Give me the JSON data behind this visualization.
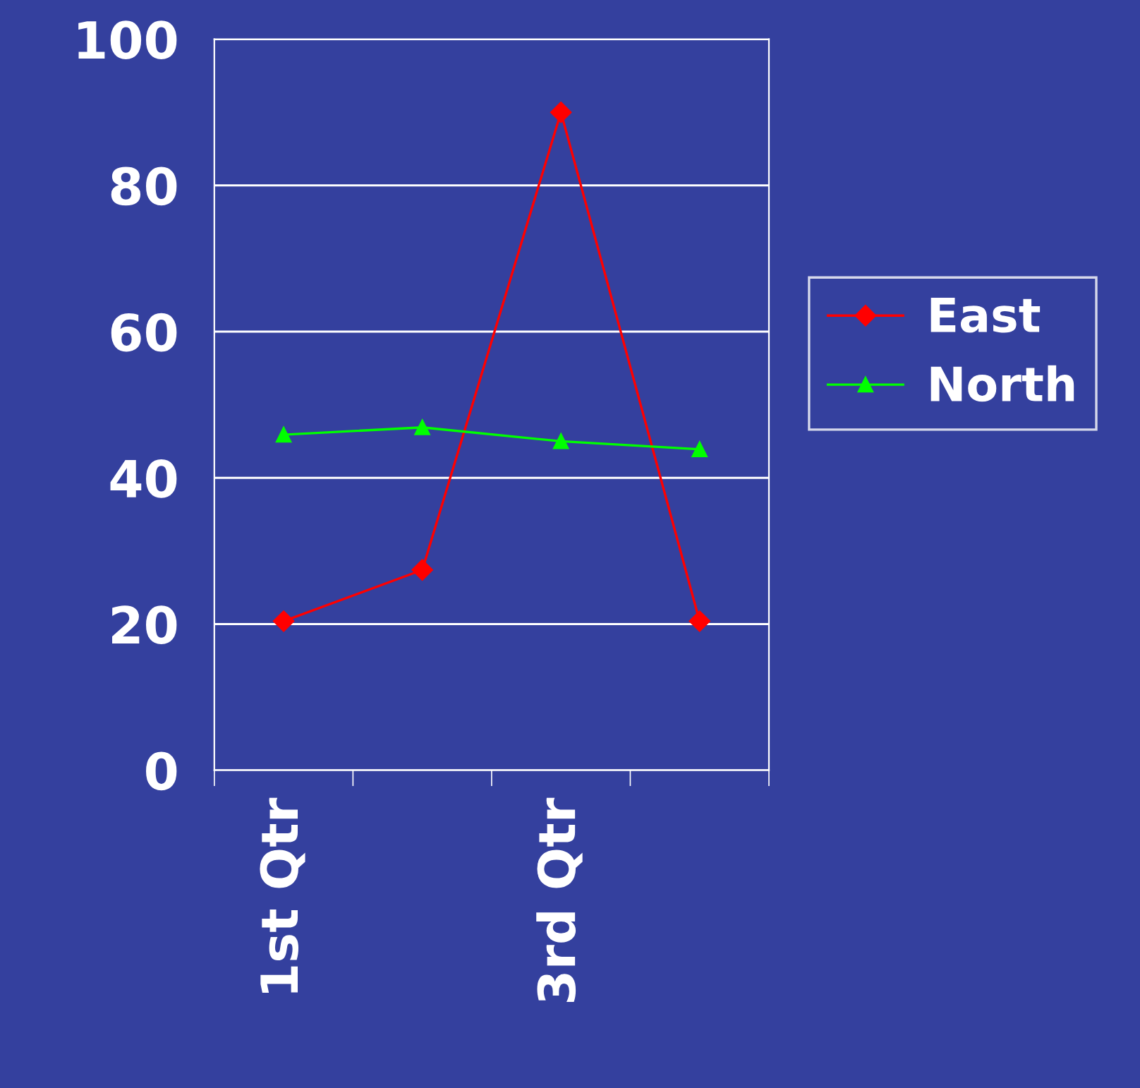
{
  "chart_data": {
    "type": "line",
    "categories": [
      "1st Qtr",
      null,
      "3rd Qtr",
      null
    ],
    "series": [
      {
        "name": "East",
        "color": "#ff0000",
        "marker": "diamond",
        "values": [
          20.4,
          27.4,
          90,
          20.4
        ]
      },
      {
        "name": "North",
        "color": "#00ff00",
        "marker": "triangle",
        "values": [
          45.9,
          46.9,
          45,
          43.9
        ]
      }
    ],
    "ylim": [
      0,
      100
    ],
    "yticks": [
      0,
      20,
      40,
      60,
      80,
      100
    ],
    "grid": "y",
    "legend": "right",
    "line_style": "solid"
  }
}
